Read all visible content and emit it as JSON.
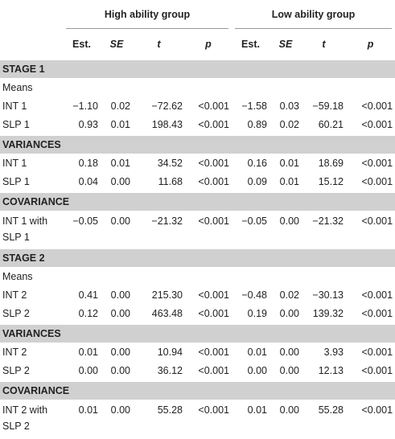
{
  "table": {
    "group_headers": [
      "High ability group",
      "Low ability group"
    ],
    "columns": [
      "Est.",
      "SE",
      "t",
      "p",
      "Est.",
      "SE",
      "t",
      "p"
    ],
    "sections": [
      {
        "title": "STAGE 1",
        "rows": [
          {
            "label": "Means"
          },
          {
            "label": "INT 1",
            "cells": [
              "−1.10",
              "0.02",
              "−72.62",
              "<0.001",
              "−1.58",
              "0.03",
              "−59.18",
              "<0.001"
            ]
          },
          {
            "label": "SLP 1",
            "cells": [
              "0.93",
              "0.01",
              "198.43",
              "<0.001",
              "0.89",
              "0.02",
              "60.21",
              "<0.001"
            ]
          }
        ]
      },
      {
        "title": "VARIANCES",
        "rows": [
          {
            "label": "INT 1",
            "cells": [
              "0.18",
              "0.01",
              "34.52",
              "<0.001",
              "0.16",
              "0.01",
              "18.69",
              "<0.001"
            ]
          },
          {
            "label": "SLP 1",
            "cells": [
              "0.04",
              "0.00",
              "11.68",
              "<0.001",
              "0.09",
              "0.01",
              "15.12",
              "<0.001"
            ]
          }
        ]
      },
      {
        "title": "COVARIANCE",
        "rows": [
          {
            "label": "INT 1 with SLP 1",
            "cells": [
              "−0.05",
              "0.00",
              "−21.32",
              "<0.001",
              "−0.05",
              "0.00",
              "−21.32",
              "<0.001"
            ]
          }
        ]
      },
      {
        "title": "STAGE 2",
        "rows": [
          {
            "label": "Means"
          },
          {
            "label": "INT 2",
            "cells": [
              "0.41",
              "0.00",
              "215.30",
              "<0.001",
              "−0.48",
              "0.02",
              "−30.13",
              "<0.001"
            ]
          },
          {
            "label": "SLP 2",
            "cells": [
              "0.12",
              "0.00",
              "463.48",
              "<0.001",
              "0.19",
              "0.00",
              "139.32",
              "<0.001"
            ]
          }
        ]
      },
      {
        "title": "VARIANCES",
        "rows": [
          {
            "label": "INT 2",
            "cells": [
              "0.01",
              "0.00",
              "10.94",
              "<0.001",
              "0.01",
              "0.00",
              "3.93",
              "<0.001"
            ]
          },
          {
            "label": "SLP 2",
            "cells": [
              "0.00",
              "0.00",
              "36.12",
              "<0.001",
              "0.00",
              "0.00",
              "12.13",
              "<0.001"
            ]
          }
        ]
      },
      {
        "title": "COVARIANCE",
        "rows": [
          {
            "label": "INT 2 with SLP 2",
            "cells": [
              "0.01",
              "0.00",
              "55.28",
              "<0.001",
              "0.01",
              "0.00",
              "55.28",
              "<0.001"
            ]
          }
        ]
      }
    ]
  }
}
